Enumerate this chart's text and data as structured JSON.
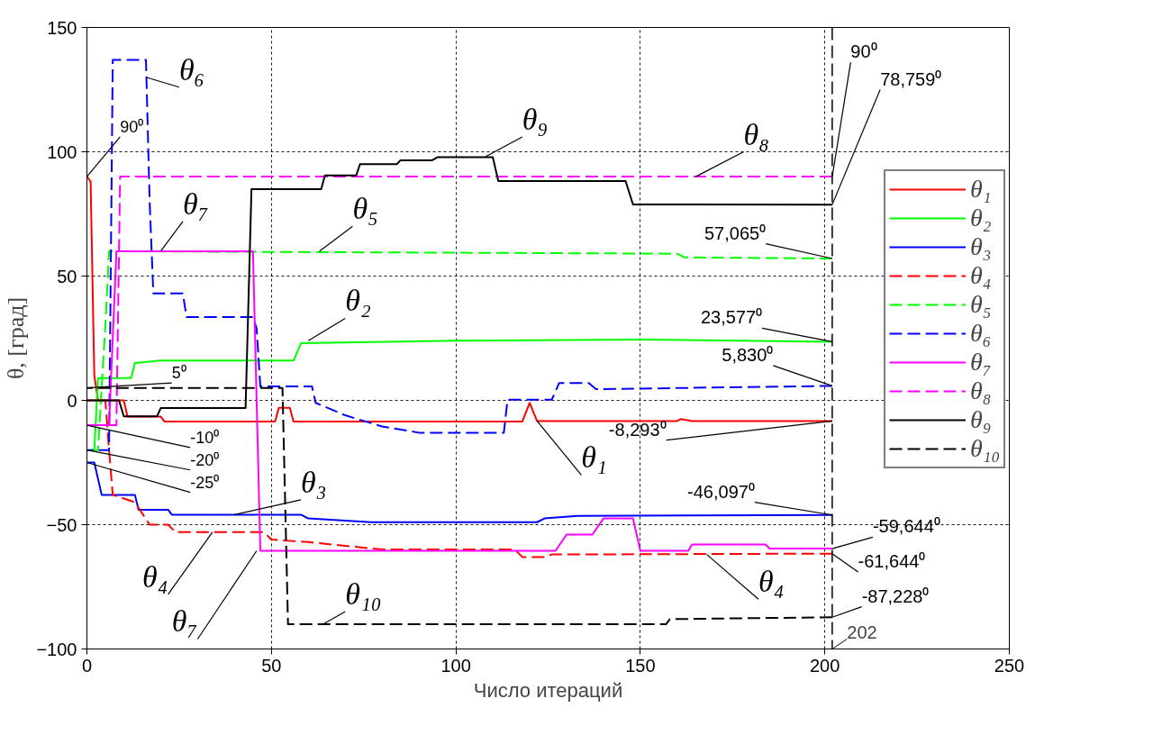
{
  "chart_data": {
    "type": "line",
    "xlabel": "Число итераций",
    "ylabel": "θ, [град]",
    "xlim": [
      0,
      250
    ],
    "ylim": [
      -100,
      150
    ],
    "xticks": [
      0,
      50,
      100,
      150,
      200,
      250
    ],
    "yticks": [
      -100,
      -50,
      0,
      50,
      100,
      150
    ],
    "grid": true,
    "legend": "top right",
    "series": [
      {
        "name": "θ₁",
        "color": "#ff0000",
        "line_style": "solid",
        "x": [
          0,
          1,
          2,
          3,
          10,
          11,
          20,
          21,
          51,
          52,
          55,
          56,
          118,
          120,
          122,
          160,
          161,
          164,
          202
        ],
        "values": [
          90,
          88,
          10,
          0,
          0,
          -6.5,
          -6.5,
          -8.5,
          -8.5,
          -3,
          -3,
          -8.5,
          -8.5,
          -1,
          -8.3,
          -8.3,
          -7.5,
          -8.3,
          -8.293
        ]
      },
      {
        "name": "θ₂",
        "color": "#00ff00",
        "line_style": "solid",
        "x": [
          2,
          3,
          12,
          13,
          20,
          56,
          58,
          100,
          150,
          202
        ],
        "values": [
          -20,
          9,
          9,
          15,
          16,
          16,
          23,
          24,
          24.5,
          23.577
        ]
      },
      {
        "name": "θ₃",
        "color": "#0000ff",
        "line_style": "solid",
        "x": [
          0,
          2,
          4,
          13,
          14,
          22,
          23,
          58,
          60,
          77,
          122,
          124,
          133,
          202
        ],
        "values": [
          -25,
          -25,
          -38,
          -38,
          -44,
          -44,
          -46,
          -46,
          -47.5,
          -49,
          -49,
          -47.5,
          -46.5,
          -46.097
        ]
      },
      {
        "name": "θ₄",
        "color": "#ff0000",
        "line_style": "dashed",
        "x": [
          0,
          5,
          6,
          7,
          13,
          17,
          22,
          24,
          48,
          50,
          60,
          80,
          116,
          118,
          124,
          126,
          202
        ],
        "values": [
          0,
          0,
          -20,
          -38,
          -41,
          -50,
          -50,
          -53,
          -53,
          -56,
          -57,
          -60,
          -60,
          -63,
          -63,
          -62,
          -61.644
        ]
      },
      {
        "name": "θ₅",
        "color": "#00ff00",
        "line_style": "dashed",
        "x": [
          0,
          3,
          5,
          6,
          160,
          162,
          202
        ],
        "values": [
          -20,
          -20,
          30,
          60,
          59,
          57.5,
          57.065
        ]
      },
      {
        "name": "θ₆",
        "color": "#0000ff",
        "line_style": "dashed",
        "x": [
          0,
          6,
          7,
          16,
          17,
          18,
          26,
          27,
          45,
          46,
          47,
          61,
          62,
          70,
          80,
          90,
          113,
          114,
          126,
          128,
          136,
          138,
          202
        ],
        "values": [
          -20,
          -20,
          137,
          137,
          80,
          43,
          43,
          33.5,
          33.5,
          29,
          5.6,
          5.6,
          -1,
          -6,
          -10.5,
          -13,
          -13,
          0.3,
          0.3,
          7,
          7,
          4.5,
          5.83
        ]
      },
      {
        "name": "θ₇",
        "color": "#ff00ff",
        "line_style": "solid",
        "x": [
          0,
          6,
          8,
          45,
          47,
          127,
          130,
          137,
          140,
          148,
          150,
          163,
          164,
          184,
          185,
          202
        ],
        "values": [
          -10,
          -10,
          60,
          60,
          -60.5,
          -60.5,
          -54,
          -54,
          -47.5,
          -47.5,
          -60.5,
          -60.5,
          -58,
          -58,
          -59.6,
          -59.644
        ]
      },
      {
        "name": "θ₈",
        "color": "#ff00ff",
        "line_style": "dashed",
        "x": [
          0,
          8,
          9,
          202
        ],
        "values": [
          -10,
          -10,
          90,
          90
        ]
      },
      {
        "name": "θ₉",
        "color": "#000000",
        "line_style": "solid",
        "x": [
          0,
          8.7,
          10,
          19,
          20,
          43,
          44.6,
          63.5,
          64.5,
          73,
          74,
          84,
          85,
          93.6,
          95,
          110,
          111.5,
          146,
          148,
          202
        ],
        "values": [
          0,
          0,
          -6.4,
          -6.4,
          -3.1,
          -3.1,
          85,
          85,
          90.5,
          90.5,
          95,
          95,
          96.6,
          96.6,
          97.8,
          97.8,
          88.2,
          88.2,
          78.8,
          78.759
        ]
      },
      {
        "name": "θ₁₀",
        "color": "#000000",
        "line_style": "dashed",
        "x": [
          0,
          53,
          54.5,
          157,
          158,
          202
        ],
        "values": [
          5,
          5,
          -90,
          -90,
          -88,
          -87.228
        ]
      }
    ],
    "ref_lines": [
      {
        "axis": "x",
        "value": 202,
        "label": "202",
        "color": "#000000",
        "line_style": "dashed"
      }
    ],
    "annotations": [
      {
        "text": "θ₆",
        "x": 16,
        "y": 130
      },
      {
        "text": "θ₇",
        "x": 20,
        "y": 60
      },
      {
        "text": "θ₅",
        "x": 63,
        "y": 60
      },
      {
        "text": "θ₂",
        "x": 60,
        "y": 24
      },
      {
        "text": "θ₉",
        "x": 108,
        "y": 98
      },
      {
        "text": "θ₈",
        "x": 165,
        "y": 90
      },
      {
        "text": "θ₃",
        "x": 40,
        "y": -46
      },
      {
        "text": "θ₄",
        "x": 34,
        "y": -53
      },
      {
        "text": "θ₇",
        "x": 46,
        "y": -60.5
      },
      {
        "text": "θ₁₀",
        "x": 64,
        "y": -90
      },
      {
        "text": "θ₁",
        "x": 122,
        "y": -8.3
      },
      {
        "text": "θ₄",
        "x": 168,
        "y": -62
      },
      {
        "text": "90⁰",
        "x": 0,
        "y": 90
      },
      {
        "text": "5⁰",
        "x": 0,
        "y": 5
      },
      {
        "text": "-10⁰",
        "x": 0,
        "y": -10
      },
      {
        "text": "-20⁰",
        "x": 0,
        "y": -20
      },
      {
        "text": "-25⁰",
        "x": 0,
        "y": -25
      },
      {
        "text": "90⁰",
        "x": 202,
        "y": 90
      },
      {
        "text": "78,759⁰",
        "x": 202,
        "y": 78.759
      },
      {
        "text": "57,065⁰",
        "x": 202,
        "y": 57.065
      },
      {
        "text": "23,577⁰",
        "x": 202,
        "y": 23.577
      },
      {
        "text": "5,830⁰",
        "x": 202,
        "y": 5.83
      },
      {
        "text": "-8,293⁰",
        "x": 202,
        "y": -8.293
      },
      {
        "text": "-46,097⁰",
        "x": 202,
        "y": -46.097
      },
      {
        "text": "-59,644⁰",
        "x": 202,
        "y": -59.644
      },
      {
        "text": "-61,644⁰",
        "x": 202,
        "y": -61.644
      },
      {
        "text": "-87,228⁰",
        "x": 202,
        "y": -87.228
      }
    ]
  }
}
